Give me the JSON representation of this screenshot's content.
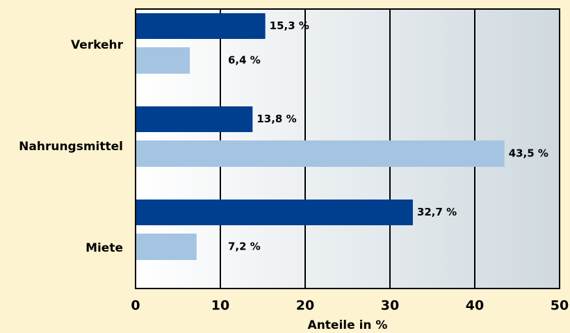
{
  "chart_data": {
    "type": "bar",
    "orientation": "horizontal",
    "x_label": "Anteile in %",
    "categories": [
      "Verkehr",
      "Nahrungsmittel",
      "Miete"
    ],
    "series": [
      {
        "color": "#003f8f",
        "values": [
          15.3,
          13.8,
          32.7
        ],
        "value_labels": [
          "15,3 %",
          "13,8 %",
          "32,7 %"
        ]
      },
      {
        "color": "#a5c4e2",
        "values": [
          6.4,
          43.5,
          7.2
        ],
        "value_labels": [
          "6,4 %",
          "43,5 %",
          "7,2 %"
        ]
      }
    ],
    "xlim": [
      0,
      50
    ],
    "xticks": [
      0,
      10,
      20,
      30,
      40,
      50
    ],
    "grid": true
  }
}
